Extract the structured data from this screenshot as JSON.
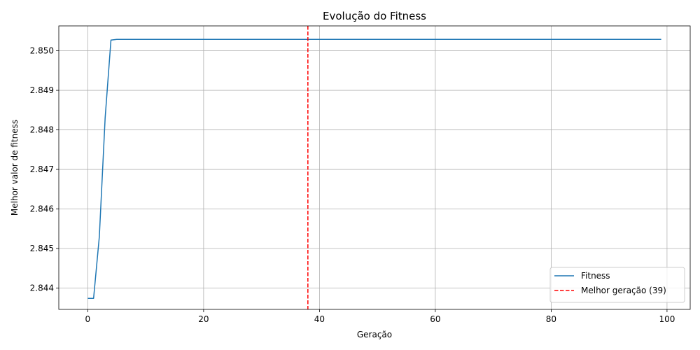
{
  "chart_data": {
    "type": "line",
    "title": "Evolução do Fitness",
    "xlabel": "Geração",
    "ylabel": "Melhor valor de fitness",
    "xlim": [
      -5,
      104
    ],
    "ylim": [
      2.84346,
      2.85063
    ],
    "xticks": [
      0,
      20,
      40,
      60,
      80,
      100
    ],
    "yticks": [
      2.844,
      2.845,
      2.846,
      2.847,
      2.848,
      2.849,
      2.85
    ],
    "xtick_labels": [
      "0",
      "20",
      "40",
      "60",
      "80",
      "100"
    ],
    "ytick_labels": [
      "2.844",
      "2.845",
      "2.846",
      "2.847",
      "2.848",
      "2.849",
      "2.850"
    ],
    "grid": true,
    "legend_position": "lower-right",
    "series": [
      {
        "name": "Fitness",
        "color": "#1f77b4",
        "style": "solid",
        "x": [
          0,
          1,
          2,
          3,
          4,
          5,
          6,
          99
        ],
        "y": [
          2.84374,
          2.84374,
          2.8453,
          2.8483,
          2.85027,
          2.85029,
          2.85029,
          2.85029
        ]
      }
    ],
    "vlines": [
      {
        "name": "Melhor geração (39)",
        "x": 38,
        "color": "#ff0000",
        "style": "dashed"
      }
    ]
  }
}
